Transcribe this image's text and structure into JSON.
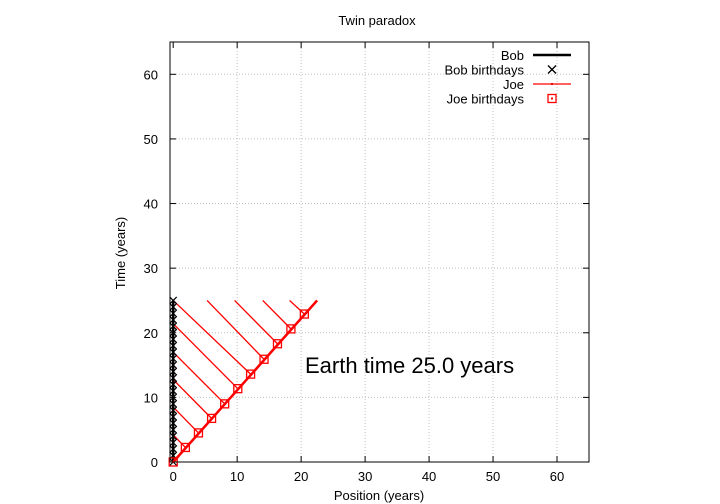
{
  "chart_data": {
    "type": "line",
    "title": "Twin paradox",
    "xlabel": "Position (years)",
    "ylabel": "Time (years)",
    "xlim": [
      -0.5,
      65
    ],
    "ylim": [
      0,
      65
    ],
    "xticks": [
      0,
      10,
      20,
      30,
      40,
      50,
      60
    ],
    "yticks": [
      0,
      10,
      20,
      30,
      40,
      50,
      60
    ],
    "grid": true,
    "legend_position": "top-right",
    "annotation": "Earth time 25.0 years",
    "colors": {
      "bob": "#000000",
      "joe": "#ff0000",
      "grid": "#c0c0c0"
    },
    "series": [
      {
        "name": "Bob",
        "style": "line",
        "x": [
          0,
          0
        ],
        "y": [
          0,
          25
        ]
      },
      {
        "name": "Bob birthdays",
        "style": "cross-markers",
        "x": [
          0,
          0,
          0,
          0,
          0,
          0,
          0,
          0,
          0,
          0,
          0,
          0,
          0,
          0,
          0,
          0,
          0,
          0,
          0,
          0,
          0,
          0,
          0,
          0,
          0,
          0
        ],
        "y": [
          0,
          1,
          2,
          3,
          4,
          5,
          6,
          7,
          8,
          9,
          10,
          11,
          12,
          13,
          14,
          15,
          16,
          17,
          18,
          19,
          20,
          21,
          22,
          23,
          24,
          25
        ]
      },
      {
        "name": "Joe",
        "style": "line",
        "x": [
          0,
          22.5
        ],
        "y": [
          0,
          25
        ]
      },
      {
        "name": "Joe birthdays",
        "style": "square-markers",
        "x": [
          0,
          1.9,
          3.95,
          6.0,
          8.05,
          10.1,
          12.1,
          14.2,
          16.3,
          18.4,
          20.5
        ],
        "y": [
          0,
          2.25,
          4.5,
          6.75,
          9.0,
          11.35,
          13.6,
          15.9,
          18.3,
          20.6,
          22.9
        ]
      }
    ],
    "light_signals": [
      {
        "x": [
          1.9,
          0
        ],
        "y": [
          2.25,
          4.2
        ]
      },
      {
        "x": [
          3.95,
          0
        ],
        "y": [
          4.5,
          8.5
        ]
      },
      {
        "x": [
          6.0,
          0
        ],
        "y": [
          6.75,
          12.75
        ]
      },
      {
        "x": [
          8.05,
          0
        ],
        "y": [
          9.0,
          17.0
        ]
      },
      {
        "x": [
          10.1,
          0
        ],
        "y": [
          11.35,
          21.4
        ]
      },
      {
        "x": [
          12.1,
          0
        ],
        "y": [
          13.6,
          25.0
        ]
      },
      {
        "x": [
          14.2,
          5.3
        ],
        "y": [
          15.9,
          25.0
        ]
      },
      {
        "x": [
          16.3,
          9.6
        ],
        "y": [
          18.3,
          25.0
        ]
      },
      {
        "x": [
          18.4,
          14.0
        ],
        "y": [
          20.6,
          25.0
        ]
      },
      {
        "x": [
          20.5,
          18.2
        ],
        "y": [
          22.9,
          25.0
        ]
      }
    ]
  }
}
